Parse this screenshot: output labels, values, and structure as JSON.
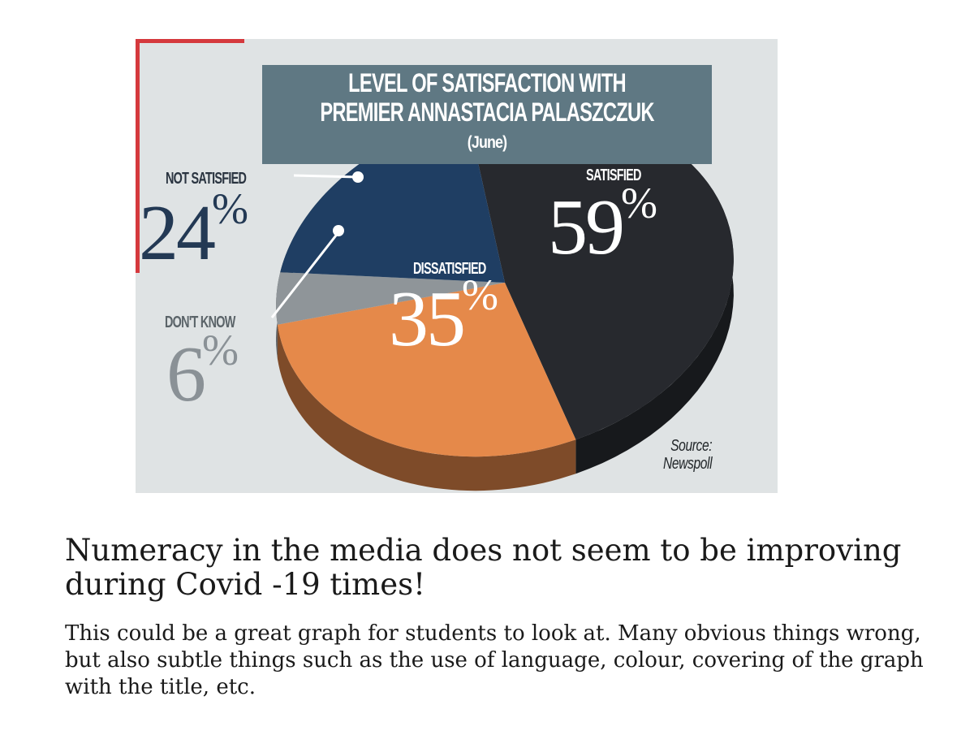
{
  "chart_data": {
    "type": "pie",
    "title": "LEVEL OF SATISFACTION WITH",
    "title_line2": "PREMIER ANNASTACIA PALASZCZUK",
    "subtitle": "(June)",
    "slices": [
      {
        "label": "SATISFIED",
        "value": 59,
        "color": "#27292e"
      },
      {
        "label": "DISSATISFIED",
        "value": 35,
        "color": "#e5894a"
      },
      {
        "label": "DON'T KNOW",
        "value": 6,
        "color": "#8f9599"
      },
      {
        "label": "NOT SATISFIED",
        "value": 24,
        "color": "#1f3e63"
      }
    ],
    "unit": "%",
    "source": "Source:",
    "source_name": "Newspoll"
  },
  "article": {
    "headline": "Numeracy in the media does not seem to be improving during Covid -19 times!",
    "body": "This could be a great graph for students to look at. Many obvious things wrong, but also subtle things such as the use of language, colour, covering of the graph with the title, etc."
  }
}
